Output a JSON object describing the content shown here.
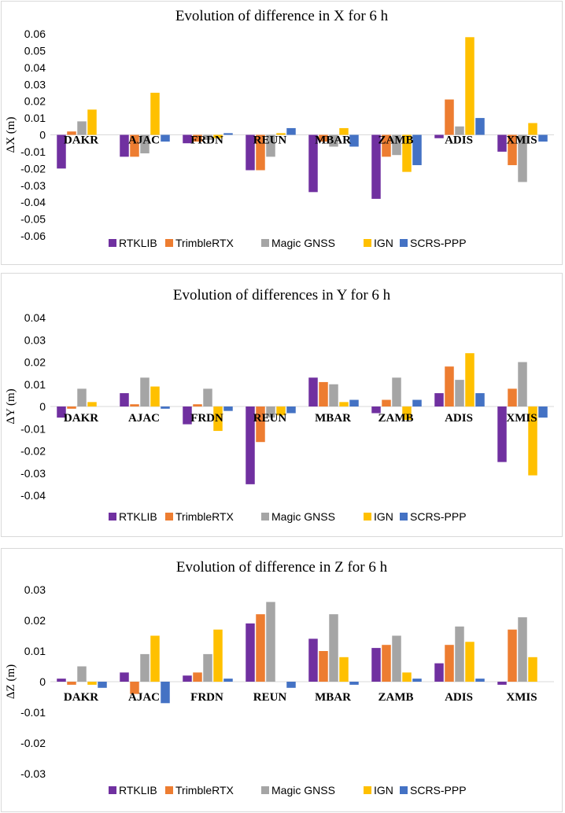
{
  "chart_data": [
    {
      "type": "bar",
      "title": "Evolution of difference in X for 6 h",
      "xlabel": "",
      "ylabel": "ΔX (m)",
      "ylim": [
        -0.06,
        0.06
      ],
      "yticks": [
        -0.06,
        -0.05,
        -0.04,
        -0.03,
        -0.02,
        -0.01,
        0,
        0.01,
        0.02,
        0.03,
        0.04,
        0.05,
        0.06
      ],
      "ytick_labels": [
        "-0.06",
        "-0.05",
        "-0.04",
        "-0.03",
        "-0.02",
        "-0.01",
        "0",
        "0.01",
        "0.02",
        "0.03",
        "0.04",
        "0.05",
        "0.06"
      ],
      "categories": [
        "DAKR",
        "AJAC",
        "FRDN",
        "REUN",
        "MBAR",
        "ZAMB",
        "ADIS",
        "XMIS"
      ],
      "legend_position": "bottom",
      "series": [
        {
          "name": "RTKLIB",
          "color": "#7030a0",
          "values": [
            -0.02,
            -0.013,
            -0.005,
            -0.021,
            -0.034,
            -0.038,
            -0.002,
            -0.01
          ]
        },
        {
          "name": "TrimbleRTX",
          "color": "#ed7d31",
          "values": [
            0.002,
            -0.013,
            -0.004,
            -0.021,
            -0.004,
            -0.013,
            0.021,
            -0.018
          ]
        },
        {
          "name": "Magic GNSS",
          "color": "#a5a5a5",
          "values": [
            0.008,
            -0.011,
            -0.003,
            -0.013,
            -0.007,
            -0.012,
            0.005,
            -0.028
          ]
        },
        {
          "name": "IGN",
          "color": "#ffc000",
          "values": [
            0.015,
            0.025,
            -0.002,
            0.001,
            0.004,
            -0.022,
            0.058,
            0.007
          ]
        },
        {
          "name": "SCRS-PPP",
          "color": "#4472c4",
          "values": [
            0,
            -0.004,
            0.001,
            0.004,
            -0.007,
            -0.018,
            0.01,
            -0.004
          ]
        }
      ]
    },
    {
      "type": "bar",
      "title": "Evolution of differences in Y for 6 h",
      "xlabel": "",
      "ylabel": "ΔY (m)",
      "ylim": [
        -0.04,
        0.04
      ],
      "yticks": [
        -0.04,
        -0.03,
        -0.02,
        -0.01,
        0,
        0.01,
        0.02,
        0.03,
        0.04
      ],
      "ytick_labels": [
        "-0.04",
        "-0.03",
        "-0.02",
        "-0.01",
        "0",
        "0.01",
        "0.02",
        "0.03",
        "0.04"
      ],
      "categories": [
        "DAKR",
        "AJAC",
        "FRDN",
        "REUN",
        "MBAR",
        "ZAMB",
        "ADIS",
        "XMIS"
      ],
      "legend_position": "bottom",
      "series": [
        {
          "name": "RTKLIB",
          "color": "#7030a0",
          "values": [
            -0.005,
            0.006,
            -0.008,
            -0.035,
            0.013,
            -0.003,
            0.006,
            -0.025
          ]
        },
        {
          "name": "TrimbleRTX",
          "color": "#ed7d31",
          "values": [
            -0.001,
            0.001,
            0.001,
            -0.016,
            0.011,
            0.003,
            0.018,
            0.008
          ]
        },
        {
          "name": "Magic GNSS",
          "color": "#a5a5a5",
          "values": [
            0.008,
            0.013,
            0.008,
            -0.005,
            0.01,
            0.013,
            0.012,
            0.02
          ]
        },
        {
          "name": "IGN",
          "color": "#ffc000",
          "values": [
            0.002,
            0.009,
            -0.011,
            -0.004,
            0.002,
            -0.006,
            0.024,
            -0.031
          ]
        },
        {
          "name": "SCRS-PPP",
          "color": "#4472c4",
          "values": [
            0,
            -0.001,
            -0.002,
            -0.003,
            0.003,
            0.003,
            0.006,
            -0.005
          ]
        }
      ]
    },
    {
      "type": "bar",
      "title": "Evolution of difference in Z for 6 h",
      "xlabel": "",
      "ylabel": "ΔZ (m)",
      "ylim": [
        -0.03,
        0.03
      ],
      "yticks": [
        -0.03,
        -0.02,
        -0.01,
        0,
        0.01,
        0.02,
        0.03
      ],
      "ytick_labels": [
        "-0.03",
        "-0.02",
        "-0.01",
        "0",
        "0.01",
        "0.02",
        "0.03"
      ],
      "categories": [
        "DAKR",
        "AJAC",
        "FRDN",
        "REUN",
        "MBAR",
        "ZAMB",
        "ADIS",
        "XMIS"
      ],
      "legend_position": "bottom",
      "series": [
        {
          "name": "RTKLIB",
          "color": "#7030a0",
          "values": [
            0.001,
            0.003,
            0.002,
            0.019,
            0.014,
            0.011,
            0.006,
            -0.001
          ]
        },
        {
          "name": "TrimbleRTX",
          "color": "#ed7d31",
          "values": [
            -0.001,
            -0.004,
            0.003,
            0.022,
            0.01,
            0.012,
            0.012,
            0.017
          ]
        },
        {
          "name": "Magic GNSS",
          "color": "#a5a5a5",
          "values": [
            0.005,
            0.009,
            0.009,
            0.026,
            0.022,
            0.015,
            0.018,
            0.021
          ]
        },
        {
          "name": "IGN",
          "color": "#ffc000",
          "values": [
            -0.001,
            0.015,
            0.017,
            0,
            0.008,
            0.003,
            0.013,
            0.008
          ]
        },
        {
          "name": "SCRS-PPP",
          "color": "#4472c4",
          "values": [
            -0.002,
            -0.007,
            0.001,
            -0.002,
            -0.001,
            0.001,
            0.001,
            0
          ]
        }
      ]
    }
  ]
}
